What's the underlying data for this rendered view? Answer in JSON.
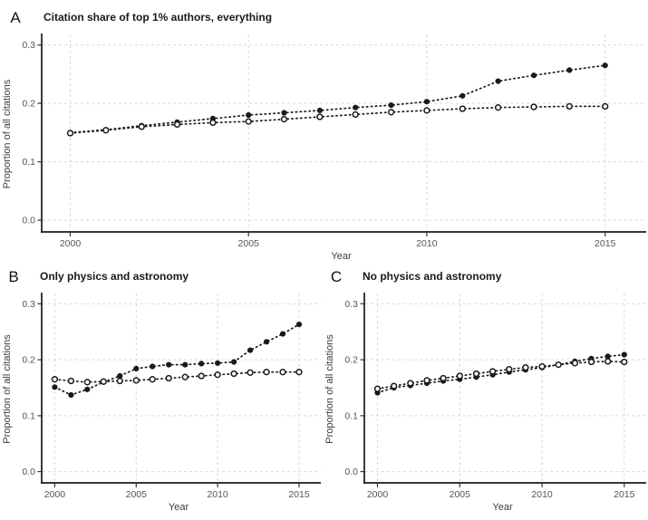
{
  "style": {
    "background": "#ffffff",
    "point_color": "#1a1a1a",
    "grid_color": "#d9d9d9",
    "axis_color": "#1a1a1a",
    "tick_color": "#333333",
    "tick_label_color": "#555555",
    "axis_title_color": "#3c3c3c",
    "line_style": "dotted",
    "grid_style": "dashed"
  },
  "chart_data": [
    {
      "panel_label": "A",
      "type": "line",
      "title": "Citation share of top 1% authors, everything",
      "xlabel": "Year",
      "ylabel": "Proportion of all citations",
      "x": [
        2000,
        2001,
        2002,
        2003,
        2004,
        2005,
        2006,
        2007,
        2008,
        2009,
        2010,
        2011,
        2012,
        2013,
        2014,
        2015
      ],
      "series": [
        {
          "name": "filled",
          "marker": "filled-circle",
          "values": [
            0.15,
            0.155,
            0.162,
            0.168,
            0.174,
            0.18,
            0.184,
            0.188,
            0.193,
            0.197,
            0.203,
            0.213,
            0.238,
            0.248,
            0.257,
            0.265
          ]
        },
        {
          "name": "open",
          "marker": "open-circle",
          "values": [
            0.149,
            0.154,
            0.16,
            0.164,
            0.167,
            0.169,
            0.173,
            0.177,
            0.181,
            0.185,
            0.188,
            0.191,
            0.193,
            0.194,
            0.195,
            0.195
          ]
        }
      ],
      "xticks": [
        2000,
        2005,
        2010,
        2015
      ],
      "yticks": [
        0.0,
        0.1,
        0.2,
        0.3
      ],
      "xlim": [
        1999.2,
        2016.0
      ],
      "ylim": [
        -0.02,
        0.315
      ],
      "grid": true,
      "legend": "none"
    },
    {
      "panel_label": "B",
      "type": "line",
      "title": "Only physics and astronomy",
      "xlabel": "Year",
      "ylabel": "Proportion of all citations",
      "x": [
        2000,
        2001,
        2002,
        2003,
        2004,
        2005,
        2006,
        2007,
        2008,
        2009,
        2010,
        2011,
        2012,
        2013,
        2014,
        2015
      ],
      "series": [
        {
          "name": "filled",
          "marker": "filled-circle",
          "values": [
            0.151,
            0.137,
            0.147,
            0.16,
            0.171,
            0.184,
            0.188,
            0.191,
            0.191,
            0.193,
            0.194,
            0.196,
            0.217,
            0.232,
            0.246,
            0.263
          ]
        },
        {
          "name": "open",
          "marker": "open-circle",
          "values": [
            0.165,
            0.162,
            0.16,
            0.161,
            0.162,
            0.163,
            0.165,
            0.167,
            0.169,
            0.171,
            0.173,
            0.175,
            0.177,
            0.178,
            0.178,
            0.178
          ]
        }
      ],
      "xticks": [
        2000,
        2005,
        2010,
        2015
      ],
      "yticks": [
        0.0,
        0.1,
        0.2,
        0.3
      ],
      "xlim": [
        1999.2,
        2016.0
      ],
      "ylim": [
        -0.02,
        0.315
      ],
      "grid": true,
      "legend": "none"
    },
    {
      "panel_label": "C",
      "type": "line",
      "title": "No physics and astronomy",
      "xlabel": "Year",
      "ylabel": "Proportion of all citations",
      "x": [
        2000,
        2001,
        2002,
        2003,
        2004,
        2005,
        2006,
        2007,
        2008,
        2009,
        2010,
        2011,
        2012,
        2013,
        2014,
        2015
      ],
      "series": [
        {
          "name": "filled",
          "marker": "filled-circle",
          "values": [
            0.141,
            0.15,
            0.154,
            0.158,
            0.162,
            0.165,
            0.169,
            0.173,
            0.178,
            0.182,
            0.186,
            0.191,
            0.197,
            0.202,
            0.206,
            0.209
          ]
        },
        {
          "name": "open",
          "marker": "open-circle",
          "values": [
            0.148,
            0.153,
            0.158,
            0.163,
            0.167,
            0.171,
            0.175,
            0.179,
            0.183,
            0.186,
            0.188,
            0.191,
            0.194,
            0.196,
            0.197,
            0.196
          ]
        }
      ],
      "xticks": [
        2000,
        2005,
        2010,
        2015
      ],
      "yticks": [
        0.0,
        0.1,
        0.2,
        0.3
      ],
      "xlim": [
        1999.2,
        2016.0
      ],
      "ylim": [
        -0.02,
        0.315
      ],
      "grid": true,
      "legend": "none"
    }
  ]
}
